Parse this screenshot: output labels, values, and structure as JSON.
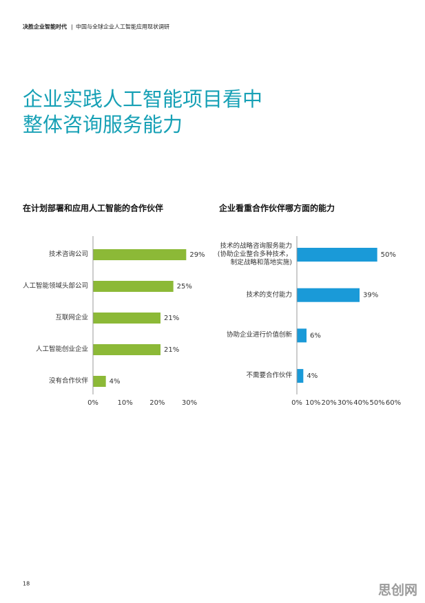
{
  "header": {
    "brand": "决胜企业智能时代",
    "separator": "|",
    "subtitle": "中国与全球企业人工智能应用现状调研"
  },
  "title": {
    "lines": [
      "企业实践人工智能项目看中",
      "整体咨询服务能力"
    ]
  },
  "chart_data": [
    {
      "type": "bar",
      "orientation": "horizontal",
      "title": "在计划部署和应用人工智能的合作伙伴",
      "categories": [
        "技术咨询公司",
        "人工智能领域头部公司",
        "互联网企业",
        "人工智能创业企业",
        "没有合作伙伴"
      ],
      "values": [
        29,
        25,
        21,
        21,
        4
      ],
      "value_labels": [
        "29%",
        "25%",
        "21%",
        "21%",
        "4%"
      ],
      "color": "#8cb937",
      "xlim": [
        0,
        30
      ],
      "xticks": [
        {
          "value": 0,
          "label": "0%"
        },
        {
          "value": 10,
          "label": "10%"
        },
        {
          "value": 20,
          "label": "20%"
        },
        {
          "value": 30,
          "label": "30%"
        }
      ]
    },
    {
      "type": "bar",
      "orientation": "horizontal",
      "title": "企业看重合作伙伴哪方面的能力",
      "categories": [
        "技术的战略咨询服务能力\n(协助企业整合多种技术，\n制定战略和落地实施)",
        "技术的支付能力",
        "协助企业进行价值创新",
        "不需要合作伙伴"
      ],
      "values": [
        50,
        39,
        6,
        4
      ],
      "value_labels": [
        "50%",
        "39%",
        "6%",
        "4%"
      ],
      "color": "#1a9ad8",
      "xlim": [
        0,
        60
      ],
      "xticks": [
        {
          "value": 0,
          "label": "0%"
        },
        {
          "value": 10,
          "label": "10%"
        },
        {
          "value": 20,
          "label": "20%"
        },
        {
          "value": 30,
          "label": "30%"
        },
        {
          "value": 40,
          "label": "40%"
        },
        {
          "value": 50,
          "label": "50%"
        },
        {
          "value": 60,
          "label": "60%"
        }
      ]
    }
  ],
  "page_number": "18",
  "watermark": "思创网"
}
